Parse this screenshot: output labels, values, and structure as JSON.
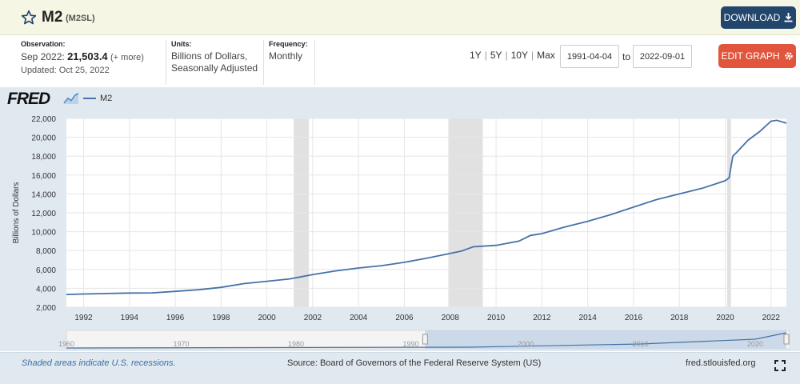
{
  "header": {
    "title": "M2",
    "series_id": "(M2SL)",
    "download_label": "DOWNLOAD"
  },
  "observation": {
    "label": "Observation:",
    "date": "Sep 2022:",
    "value": "21,503.4",
    "more": "(+ more)",
    "updated": "Updated: Oct 25, 2022"
  },
  "units": {
    "label": "Units:",
    "line1": "Billions of Dollars,",
    "line2": "Seasonally Adjusted"
  },
  "frequency": {
    "label": "Frequency:",
    "value": "Monthly"
  },
  "ranges": [
    "1Y",
    "5Y",
    "10Y",
    "Max"
  ],
  "date_range": {
    "start": "1991-04-04",
    "to_label": "to",
    "end": "2022-09-01"
  },
  "edit_label": "EDIT GRAPH",
  "logo": "FRED",
  "footer": {
    "note": "Shaded areas indicate U.S. recessions.",
    "source": "Source: Board of Governors of the Federal Reserve System (US)",
    "site": "fred.stlouisfed.org"
  },
  "colors": {
    "line": "#4572a7",
    "recession": "#e1e1e1",
    "download": "#23466d",
    "edit": "#e0553c"
  },
  "chart_data": {
    "type": "line",
    "title": "",
    "series": [
      {
        "name": "M2",
        "color": "#4572a7"
      }
    ],
    "ylabel": "Billions of Dollars",
    "xlabel": "",
    "xlim": [
      1991.25,
      2022.67
    ],
    "ylim": [
      2000,
      22000
    ],
    "yticks": [
      2000,
      4000,
      6000,
      8000,
      10000,
      12000,
      14000,
      16000,
      18000,
      20000,
      22000
    ],
    "ytick_labels": [
      "2,000",
      "4,000",
      "6,000",
      "8,000",
      "10,000",
      "12,000",
      "14,000",
      "16,000",
      "18,000",
      "20,000",
      "22,000"
    ],
    "xticks": [
      1992,
      1994,
      1996,
      1998,
      2000,
      2002,
      2004,
      2006,
      2008,
      2010,
      2012,
      2014,
      2016,
      2018,
      2020,
      2022
    ],
    "xtick_labels": [
      "1992",
      "1994",
      "1996",
      "1998",
      "2000",
      "2002",
      "2004",
      "2006",
      "2008",
      "2010",
      "2012",
      "2014",
      "2016",
      "2018",
      "2020",
      "2022"
    ],
    "recessions": [
      [
        2001.17,
        2001.83
      ],
      [
        2007.92,
        2009.42
      ],
      [
        2020.08,
        2020.25
      ]
    ],
    "x": [
      1991.25,
      1992.0,
      1993.0,
      1994.0,
      1995.0,
      1996.0,
      1997.0,
      1998.0,
      1999.0,
      2000.0,
      2001.0,
      2002.0,
      2003.0,
      2004.0,
      2005.0,
      2006.0,
      2007.0,
      2008.0,
      2008.5,
      2009.0,
      2010.0,
      2011.0,
      2011.5,
      2012.0,
      2013.0,
      2014.0,
      2015.0,
      2016.0,
      2017.0,
      2018.0,
      2019.0,
      2020.0,
      2020.17,
      2020.33,
      2020.5,
      2021.0,
      2021.5,
      2022.0,
      2022.25,
      2022.67
    ],
    "values": [
      3350,
      3400,
      3450,
      3500,
      3520,
      3680,
      3850,
      4100,
      4500,
      4750,
      5000,
      5450,
      5850,
      6150,
      6400,
      6750,
      7200,
      7700,
      7950,
      8400,
      8550,
      9000,
      9600,
      9800,
      10500,
      11100,
      11800,
      12600,
      13400,
      14000,
      14600,
      15400,
      15700,
      18000,
      18400,
      19700,
      20600,
      21700,
      21800,
      21503.4
    ],
    "navigator": {
      "labels": [
        "1960",
        "1970",
        "1980",
        "1990",
        "2000",
        "2010",
        "2020"
      ],
      "range": [
        1960,
        2023
      ],
      "selected": [
        1991.25,
        2022.67
      ]
    }
  }
}
